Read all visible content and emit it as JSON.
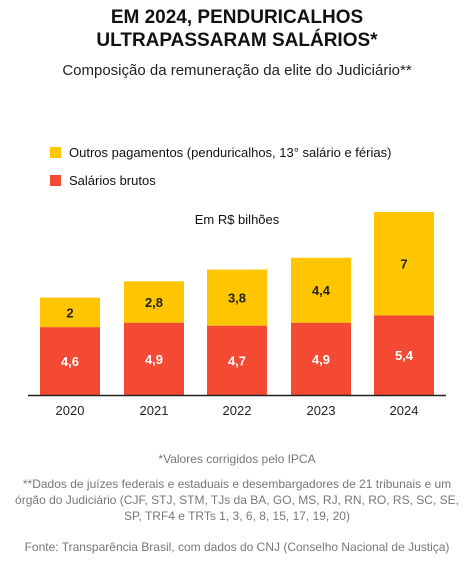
{
  "title_line1": "EM 2024, PENDURICALHOS",
  "title_line2": "ULTRAPASSARAM SALÁRIOS*",
  "subtitle": "Composição da remuneração da elite do Judiciário**",
  "legend": {
    "outros": "Outros pagamentos (penduricalhos, 13° salário e férias)",
    "salarios": "Salários brutos"
  },
  "unit_label": "Em R$ bilhões",
  "colors": {
    "outros": "#FFC600",
    "salarios": "#F44A34",
    "axis": "#222222"
  },
  "chart_data": {
    "type": "bar",
    "stacked": true,
    "categories": [
      "2020",
      "2021",
      "2022",
      "2023",
      "2024"
    ],
    "series": [
      {
        "name": "Salários brutos",
        "values": [
          4.6,
          4.9,
          4.7,
          4.9,
          5.4
        ],
        "labels": [
          "4,6",
          "4,9",
          "4,7",
          "4,9",
          "5,4"
        ]
      },
      {
        "name": "Outros pagamentos (penduricalhos, 13° salário e férias)",
        "values": [
          2,
          2.8,
          3.8,
          4.4,
          7
        ],
        "labels": [
          "2",
          "2,8",
          "3,8",
          "4,4",
          "7"
        ]
      }
    ],
    "ylim": [
      0,
      12.4
    ],
    "grid": false,
    "legend_position": "top-left"
  },
  "note": "*Valores corrigidos pelo IPCA",
  "footnote": "**Dados de juízes federais e estaduais e desembargadores de 21 tribunais e um órgão do Judiciário (CJF, STJ, STM, TJs da BA, GO, MS, RJ, RN, RO, RS, SC, SE, SP, TRF4 e TRTs 1, 3, 6, 8, 15, 17, 19, 20)",
  "source": "Fonte: Transparência Brasil, com dados do CNJ (Conselho Nacional de Justiça)"
}
